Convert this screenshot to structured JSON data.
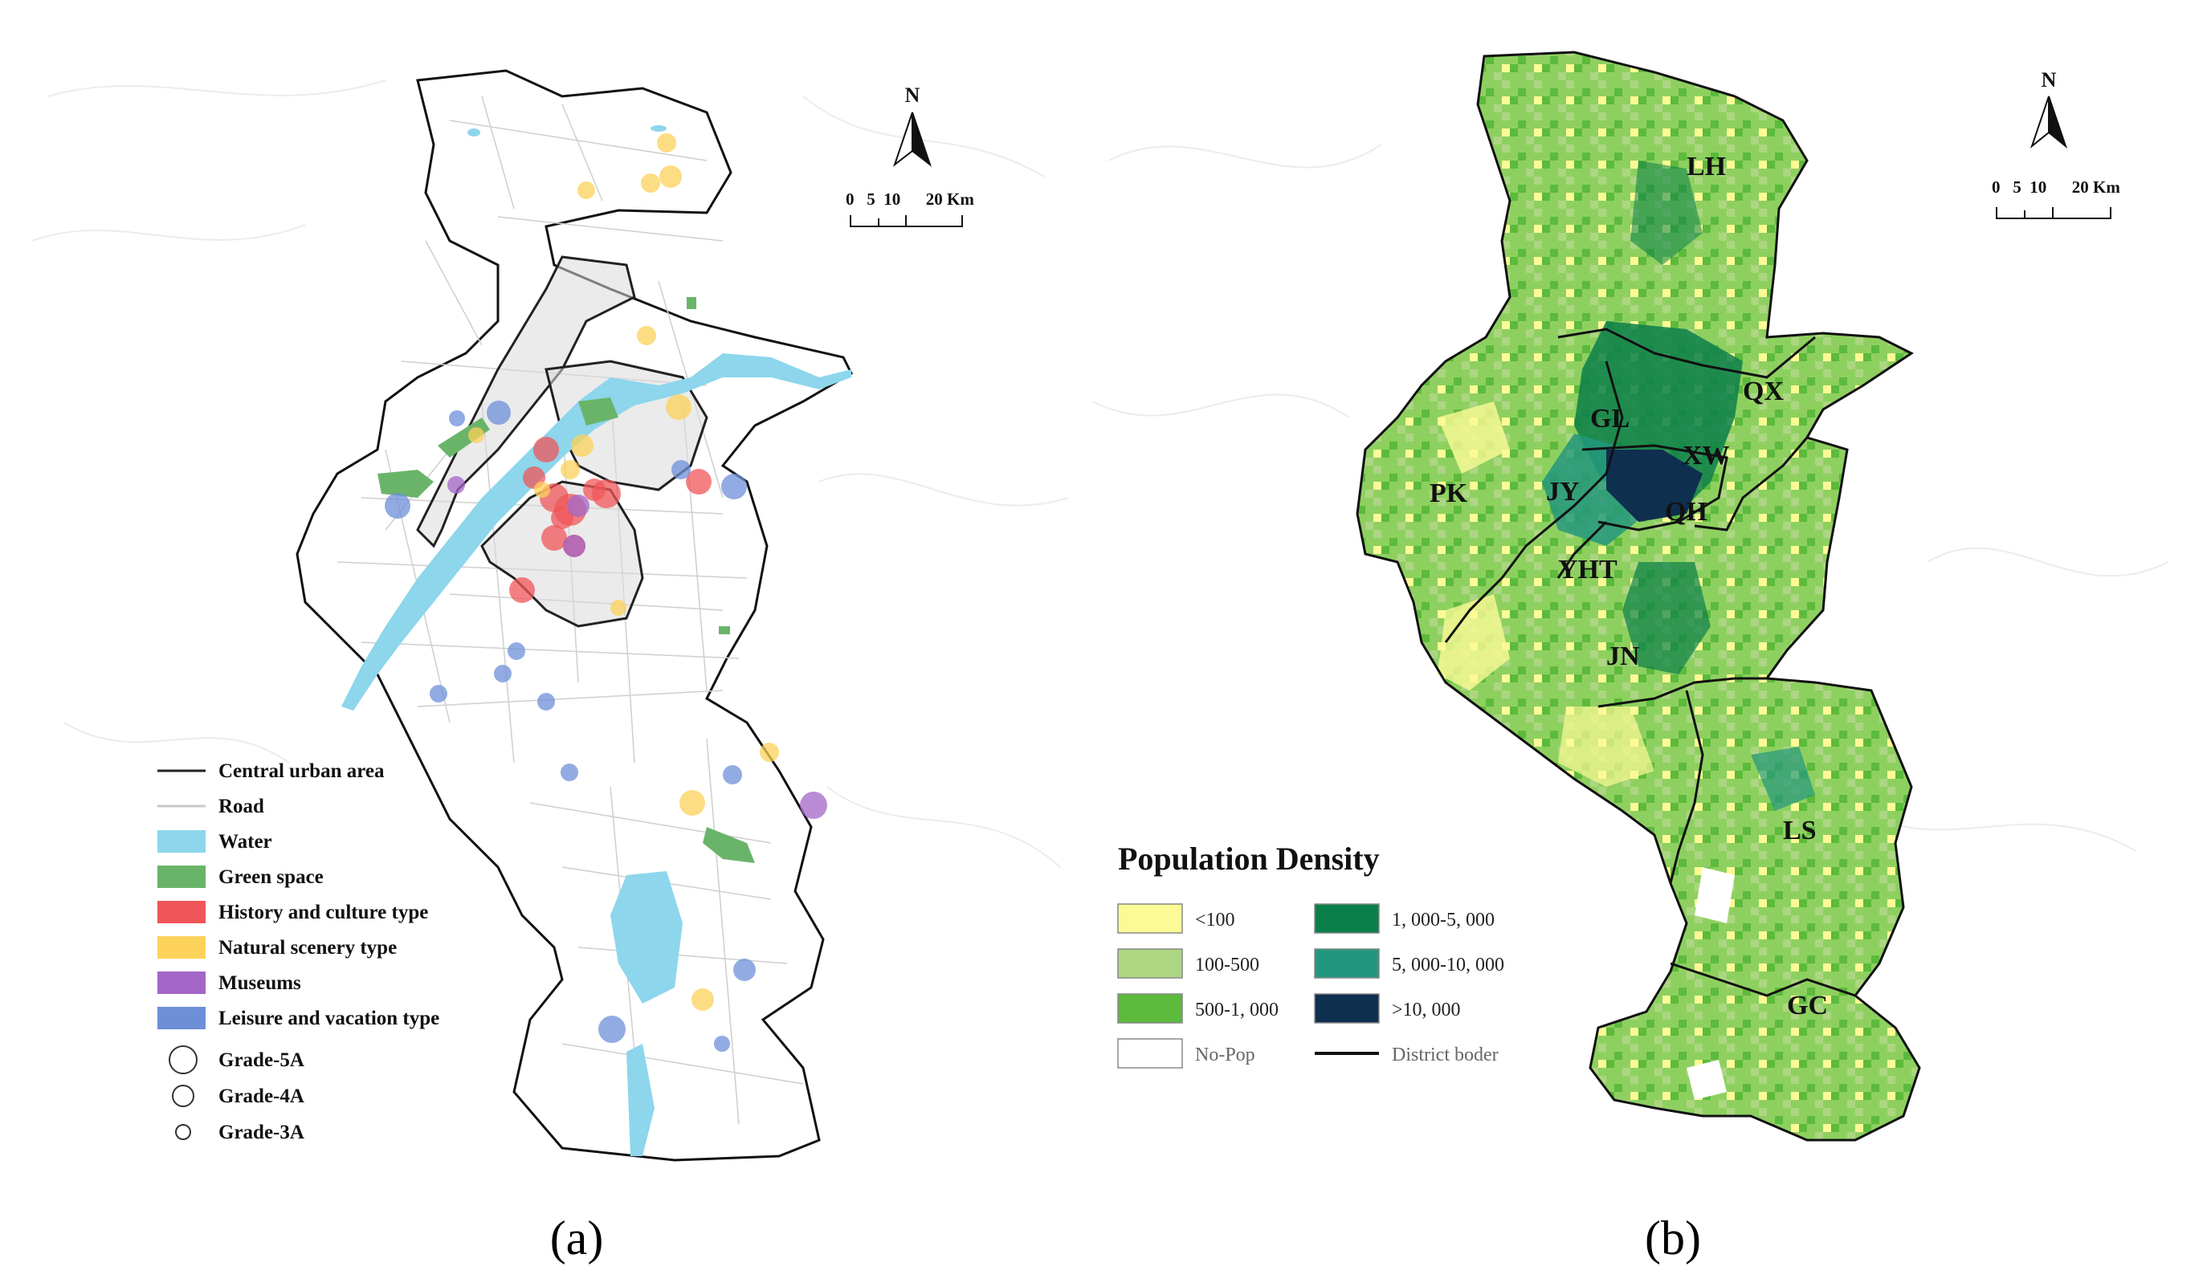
{
  "panel_a": {
    "caption": "(a)",
    "north_label": "N",
    "scale_label": "0   5  10      20 Km",
    "legend": [
      {
        "label": "Central urban area",
        "kind": "line",
        "color": "#222222"
      },
      {
        "label": "Road",
        "kind": "line",
        "color": "#c8c8c8"
      },
      {
        "label": "Water",
        "kind": "box",
        "color": "#8dd6ec"
      },
      {
        "label": "Green space",
        "kind": "box",
        "color": "#6ab46a"
      },
      {
        "label": "History and culture type",
        "kind": "box",
        "color": "#f0555a"
      },
      {
        "label": "Natural scenery type",
        "kind": "box",
        "color": "#fcd25a"
      },
      {
        "label": "Museums",
        "kind": "box",
        "color": "#a366c8"
      },
      {
        "label": "Leisure and vacation type",
        "kind": "box",
        "color": "#6d8fd8"
      },
      {
        "label": "Grade-5A",
        "kind": "circle",
        "size": "large"
      },
      {
        "label": "Grade-4A",
        "kind": "circle",
        "size": "medium"
      },
      {
        "label": "Grade-3A",
        "kind": "circle",
        "size": "small"
      }
    ]
  },
  "panel_b": {
    "caption": "(b)",
    "north_label": "N",
    "scale_label": "0   5  10      20 Km",
    "legend_title": "Population Density",
    "legend": [
      {
        "label": "<100",
        "color": "#fcfa96"
      },
      {
        "label": "100-500",
        "color": "#acd682"
      },
      {
        "label": "500-1, 000",
        "color": "#5cba3c"
      },
      {
        "label": "No-Pop",
        "color": "#ffffff"
      },
      {
        "label": "1, 000-5, 000",
        "color": "#0a7f4a"
      },
      {
        "label": "5, 000-10, 000",
        "color": "#23977d"
      },
      {
        "label": ">10, 000",
        "color": "#0f2f4f"
      },
      {
        "label": "District boder",
        "color": "#111111"
      }
    ],
    "districts": [
      "LH",
      "QX",
      "GL",
      "XW",
      "PK",
      "JY",
      "QH",
      "YHT",
      "JN",
      "LS",
      "GC"
    ]
  }
}
